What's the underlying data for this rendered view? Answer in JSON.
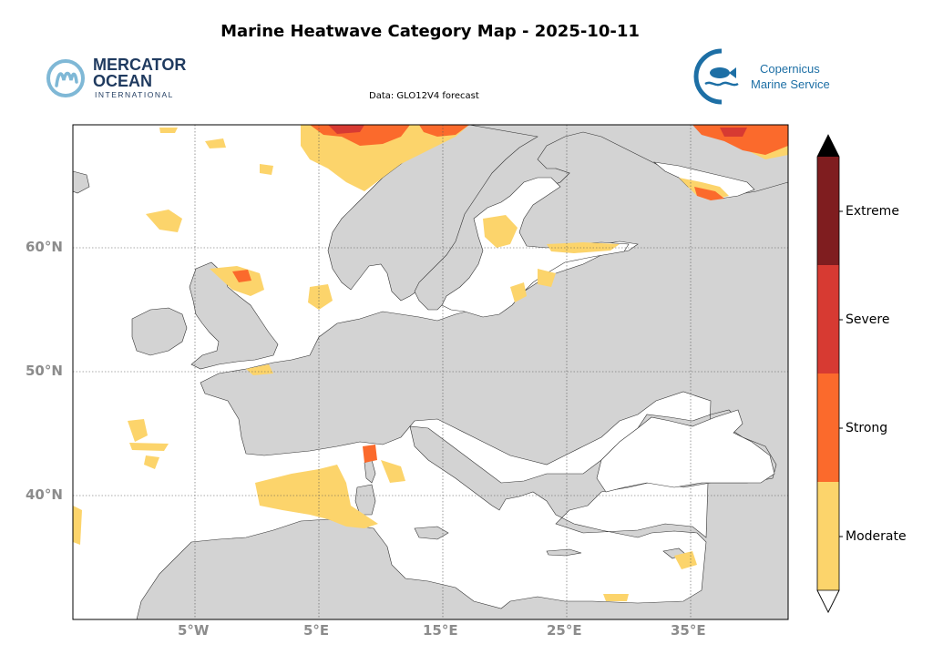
{
  "title": "Marine Heatwave Category Map - 2025-10-11",
  "subtitle": "Data: GLO12V4 forecast",
  "logos": {
    "left": {
      "line1": "MERCATOR",
      "line2": "OCEAN",
      "line3": "INTERNATIONAL",
      "color": "#1f3a5f",
      "accent": "#7fb8d6"
    },
    "right": {
      "line1": "Copernicus",
      "line2": "Marine Service",
      "color": "#1d6fa5"
    }
  },
  "axes": {
    "lat_labels": [
      "60°N",
      "50°N",
      "40°N"
    ],
    "lon_labels": [
      "5°W",
      "5°E",
      "15°E",
      "25°E",
      "35°E"
    ]
  },
  "colors": {
    "land": "#d3d3d3",
    "sea": "#ffffff",
    "moderate": "#fcd46b",
    "strong": "#fb6a2c",
    "severe": "#d73a32",
    "extreme": "#7f1d1f",
    "above": "#000000"
  },
  "legend": {
    "categories": [
      "Moderate",
      "Strong",
      "Severe",
      "Extreme"
    ]
  }
}
